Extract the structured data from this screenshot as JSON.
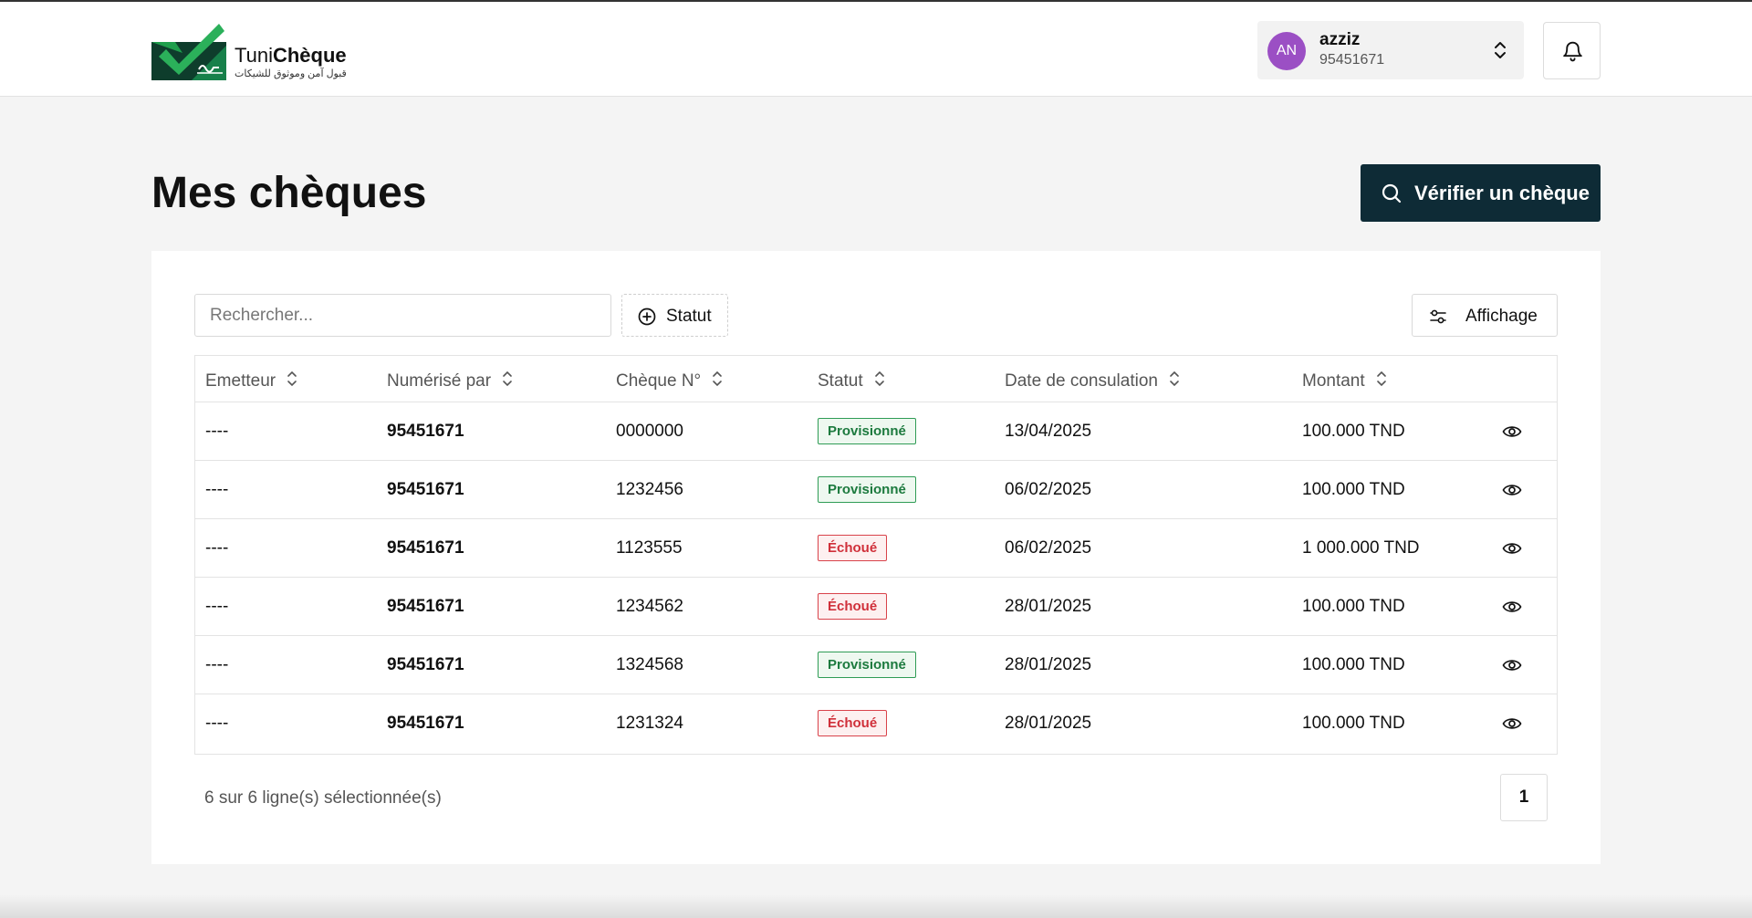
{
  "brand": {
    "name_light": "Tuni",
    "name_bold": "Chèque",
    "tagline": "قبول آمن وموثوق للشيكات",
    "colors": {
      "green": "#1f9e4c",
      "dark": "#0e3d2c"
    }
  },
  "user": {
    "initials": "AN",
    "name": "azziz",
    "id": "95451671",
    "avatar_color": "#9b4fc4"
  },
  "page": {
    "title": "Mes chèques",
    "verify_label": "Vérifier un chèque"
  },
  "toolbar": {
    "search_placeholder": "Rechercher...",
    "search_value": "",
    "status_filter_label": "Statut",
    "display_label": "Affichage"
  },
  "table": {
    "columns": [
      "Emetteur",
      "Numérisé par",
      "Chèque N°",
      "Statut",
      "Date de consulation",
      "Montant"
    ],
    "rows": [
      {
        "emetteur": "----",
        "numerise_par": "95451671",
        "cheque_no": "0000000",
        "statut": "Provisionné",
        "statut_type": "ok",
        "date": "13/04/2025",
        "montant": "100.000 TND"
      },
      {
        "emetteur": "----",
        "numerise_par": "95451671",
        "cheque_no": "1232456",
        "statut": "Provisionné",
        "statut_type": "ok",
        "date": "06/02/2025",
        "montant": "100.000 TND"
      },
      {
        "emetteur": "----",
        "numerise_par": "95451671",
        "cheque_no": "1123555",
        "statut": "Échoué",
        "statut_type": "fail",
        "date": "06/02/2025",
        "montant": "1 000.000 TND"
      },
      {
        "emetteur": "----",
        "numerise_par": "95451671",
        "cheque_no": "1234562",
        "statut": "Échoué",
        "statut_type": "fail",
        "date": "28/01/2025",
        "montant": "100.000 TND"
      },
      {
        "emetteur": "----",
        "numerise_par": "95451671",
        "cheque_no": "1324568",
        "statut": "Provisionné",
        "statut_type": "ok",
        "date": "28/01/2025",
        "montant": "100.000 TND"
      },
      {
        "emetteur": "----",
        "numerise_par": "95451671",
        "cheque_no": "1231324",
        "statut": "Échoué",
        "statut_type": "fail",
        "date": "28/01/2025",
        "montant": "100.000 TND"
      }
    ]
  },
  "footer": {
    "selection_text": "6 sur 6 ligne(s) sélectionnée(s)",
    "current_page": "1"
  },
  "icons": {
    "logo": "check-logo-icon",
    "switcher": "chevrons-up-down-icon",
    "notifications": "bell-icon",
    "verify": "search-icon",
    "filter": "plus-circle-icon",
    "display": "sliders-icon",
    "sort": "sort-icon",
    "view": "eye-icon"
  }
}
